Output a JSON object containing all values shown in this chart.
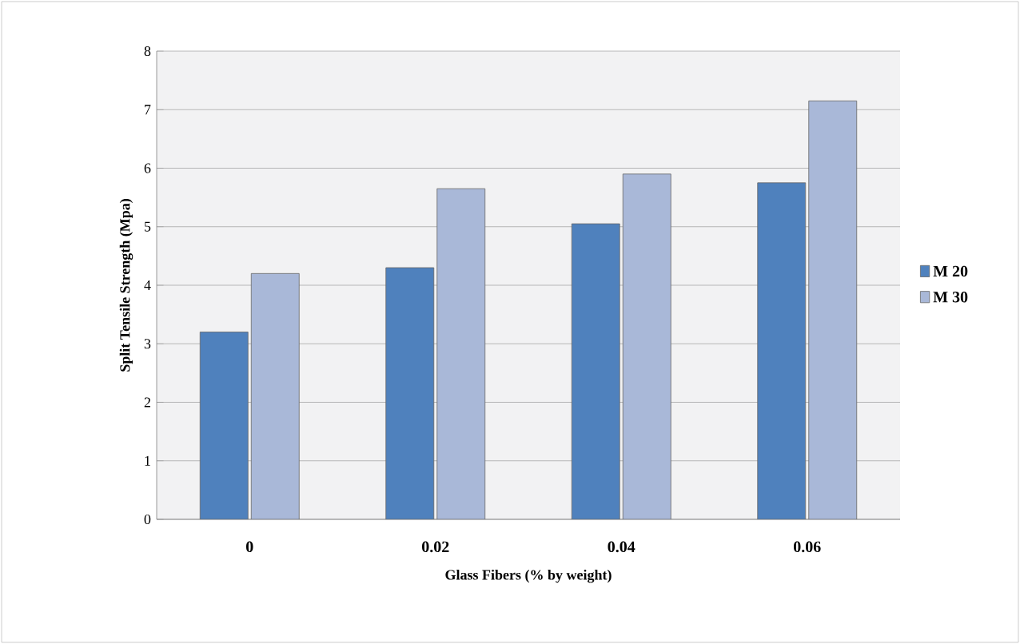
{
  "chart_data": {
    "type": "bar",
    "xlabel": "Glass Fibers (% by weight)",
    "ylabel": "Split Tensile  Strength (Mpa)",
    "categories": [
      "0",
      "0.02",
      "0.04",
      "0.06"
    ],
    "series": [
      {
        "name": "M 20",
        "color": "#4f81bd",
        "values": [
          3.2,
          4.3,
          5.05,
          5.75
        ]
      },
      {
        "name": "M 30",
        "color": "#a9b8d8",
        "values": [
          4.2,
          5.65,
          5.9,
          7.15
        ]
      }
    ],
    "ylim": [
      0,
      8
    ],
    "yticks": [
      0,
      1,
      2,
      3,
      4,
      5,
      6,
      7,
      8
    ],
    "grid": "y",
    "legend": "right"
  }
}
